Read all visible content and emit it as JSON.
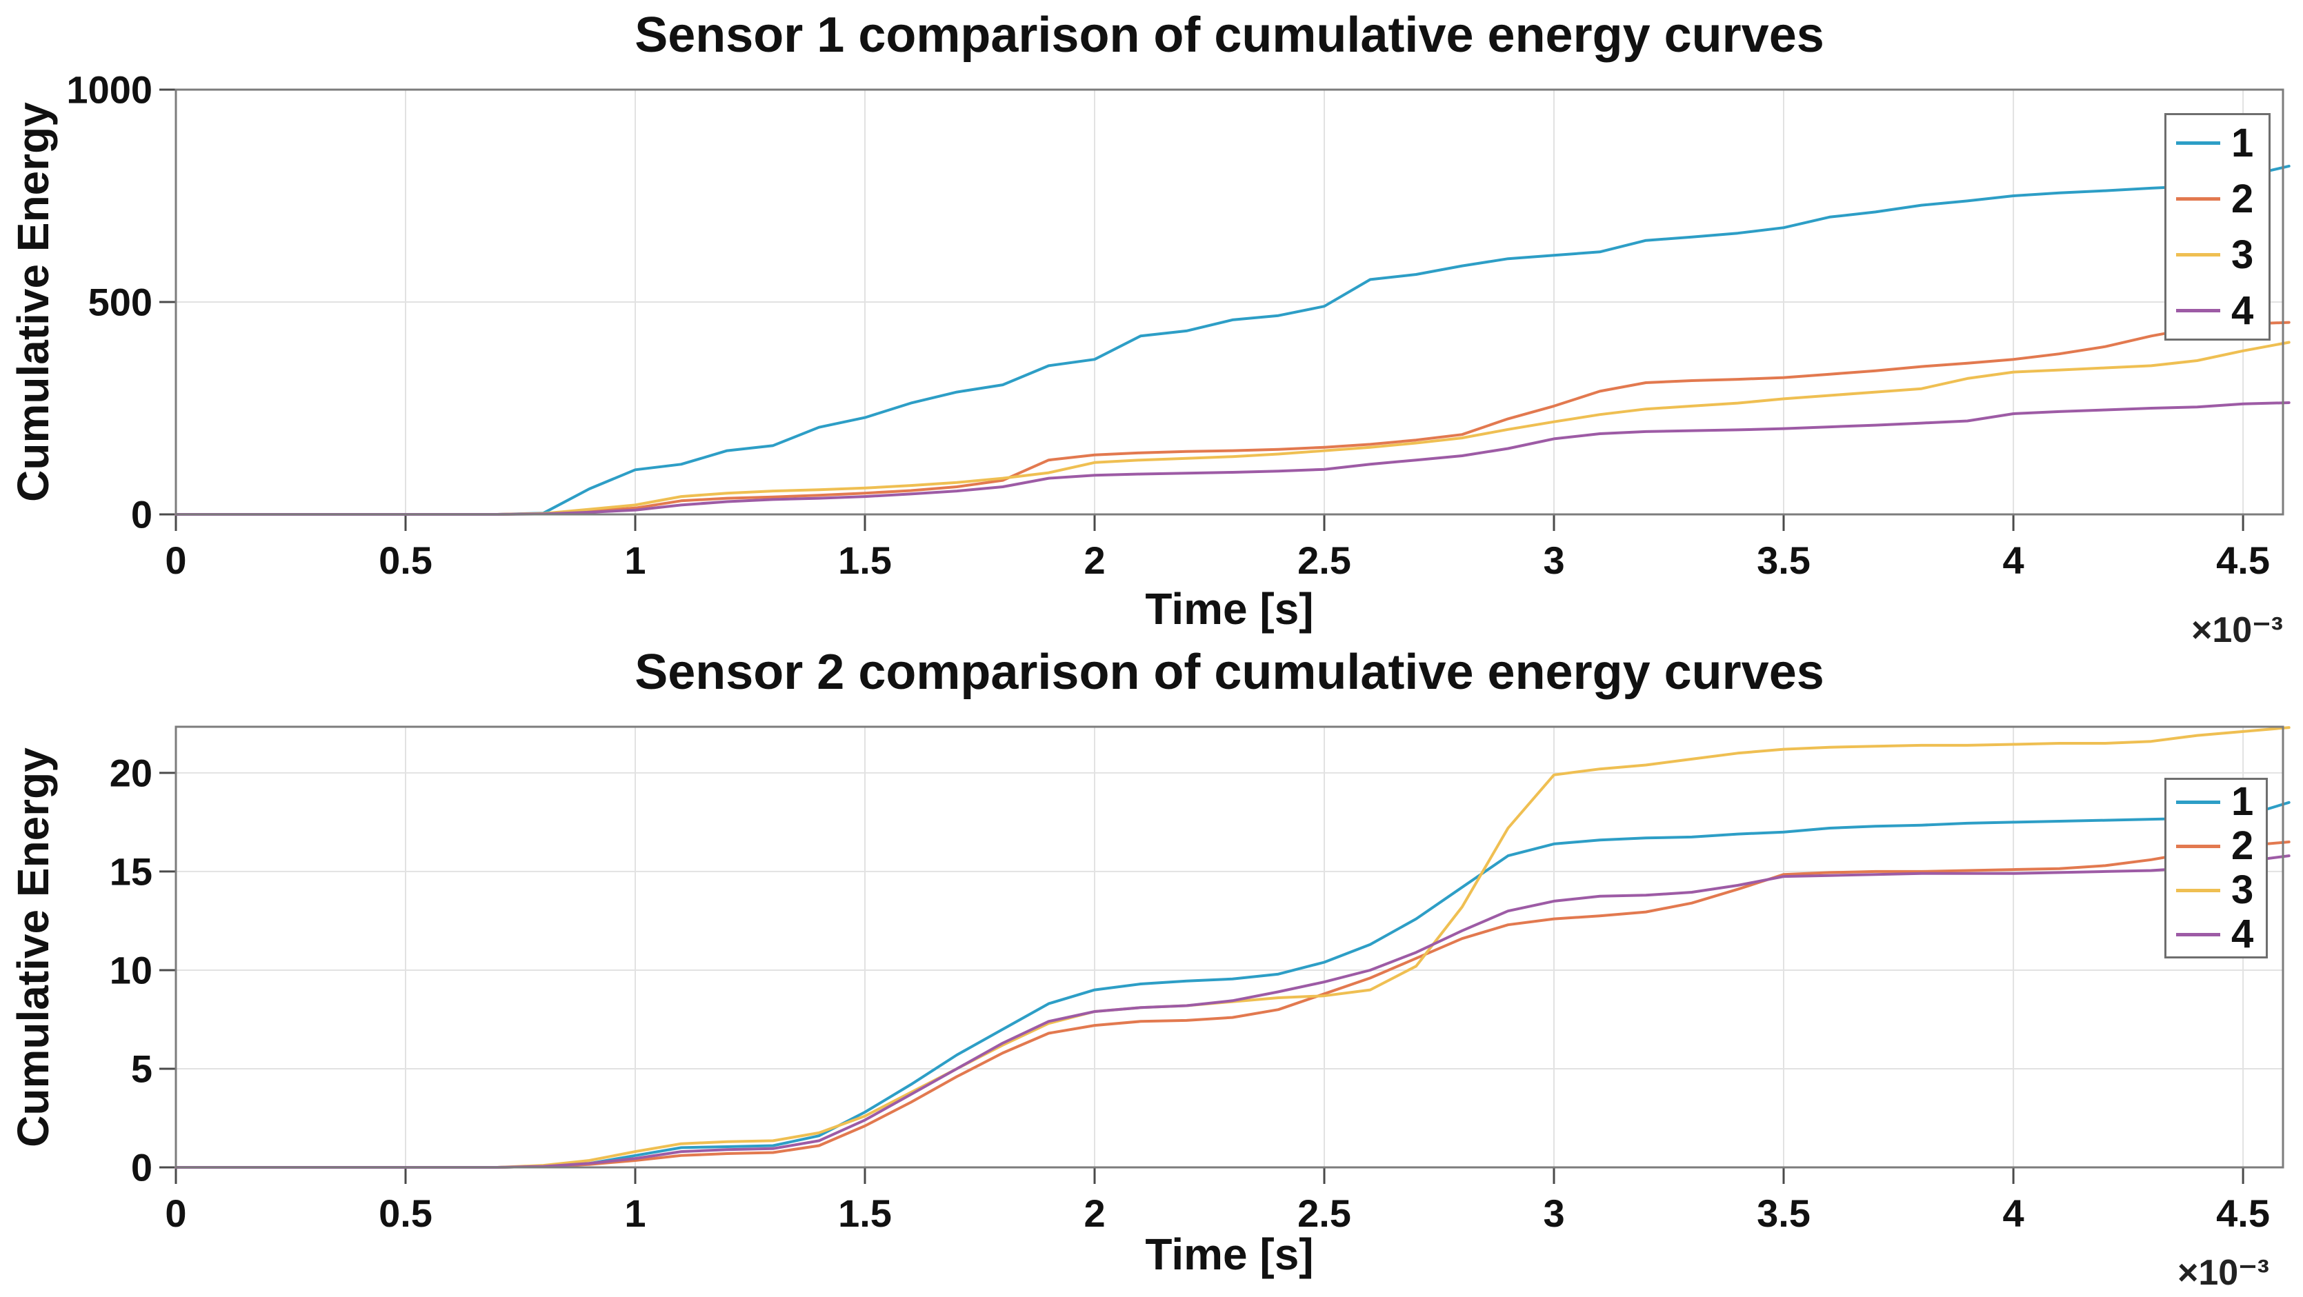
{
  "figure": {
    "background": "#ffffff",
    "grid_color": "#e2e2e2",
    "axes_box_color": "#7c7c7c",
    "text_color": "#111111"
  },
  "chart_data": [
    {
      "type": "line",
      "title": "Sensor 1 comparison of cumulative energy curves",
      "xlabel": "Time [s]",
      "ylabel": "Cumulative Energy",
      "x_multiplier": "×10⁻³",
      "grid": true,
      "legend_position": "northeast",
      "xlim": [
        0,
        4.587
      ],
      "ylim": [
        0,
        1000
      ],
      "x_ticks": [
        0,
        0.5,
        1,
        1.5,
        2,
        2.5,
        3,
        3.5,
        4,
        4.5
      ],
      "x_tick_labels": [
        "0",
        "0.5",
        "1",
        "1.5",
        "2",
        "2.5",
        "3",
        "3.5",
        "4",
        "4.5"
      ],
      "y_ticks": [
        0,
        500,
        1000
      ],
      "y_tick_labels": [
        "0",
        "500",
        "1000"
      ],
      "x": [
        0,
        0.1,
        0.2,
        0.3,
        0.4,
        0.5,
        0.6,
        0.7,
        0.8,
        0.9,
        1.0,
        1.1,
        1.2,
        1.3,
        1.4,
        1.5,
        1.6,
        1.7,
        1.8,
        1.9,
        2.0,
        2.1,
        2.2,
        2.3,
        2.4,
        2.5,
        2.6,
        2.7,
        2.8,
        2.9,
        3.0,
        3.1,
        3.2,
        3.3,
        3.4,
        3.5,
        3.6,
        3.7,
        3.8,
        3.9,
        4.0,
        4.1,
        4.2,
        4.3,
        4.4,
        4.5,
        4.6
      ],
      "series": [
        {
          "name": "1",
          "color": "#2d9ec6",
          "values": [
            0,
            0,
            0,
            0,
            0,
            0,
            0,
            0,
            3,
            60,
            105,
            118,
            150,
            162,
            205,
            228,
            262,
            288,
            305,
            350,
            365,
            420,
            432,
            458,
            468,
            490,
            553,
            565,
            585,
            602,
            610,
            618,
            645,
            653,
            662,
            675,
            700,
            712,
            728,
            738,
            750,
            757,
            762,
            768,
            773,
            795,
            820
          ]
        },
        {
          "name": "2",
          "color": "#e2794f",
          "values": [
            0,
            0,
            0,
            0,
            0,
            0,
            0,
            0,
            2,
            8,
            15,
            32,
            38,
            41,
            45,
            50,
            56,
            65,
            80,
            128,
            140,
            145,
            148,
            150,
            153,
            158,
            165,
            175,
            188,
            225,
            255,
            290,
            310,
            315,
            318,
            322,
            330,
            338,
            348,
            356,
            365,
            378,
            395,
            420,
            440,
            448,
            452
          ]
        },
        {
          "name": "3",
          "color": "#efbf52",
          "values": [
            0,
            0,
            0,
            0,
            0,
            0,
            0,
            0,
            2,
            12,
            22,
            42,
            50,
            55,
            58,
            62,
            68,
            75,
            85,
            98,
            122,
            128,
            132,
            136,
            142,
            150,
            158,
            168,
            180,
            200,
            218,
            235,
            248,
            255,
            262,
            272,
            280,
            288,
            296,
            320,
            335,
            340,
            345,
            350,
            362,
            385,
            405
          ]
        },
        {
          "name": "4",
          "color": "#9d5ba5",
          "values": [
            0,
            0,
            0,
            0,
            0,
            0,
            0,
            0,
            1,
            5,
            10,
            22,
            30,
            35,
            38,
            42,
            48,
            55,
            65,
            85,
            92,
            95,
            97,
            99,
            102,
            106,
            118,
            128,
            138,
            155,
            178,
            190,
            195,
            197,
            199,
            202,
            206,
            210,
            215,
            220,
            237,
            242,
            246,
            250,
            253,
            260,
            263
          ]
        }
      ]
    },
    {
      "type": "line",
      "title": "Sensor 2 comparison of cumulative energy curves",
      "xlabel": "Time [s]",
      "ylabel": "Cumulative Energy",
      "x_multiplier": "×10⁻³",
      "grid": true,
      "legend_position": "northeast",
      "xlim": [
        0,
        4.587
      ],
      "ylim": [
        0,
        22.34
      ],
      "x_ticks": [
        0,
        0.5,
        1,
        1.5,
        2,
        2.5,
        3,
        3.5,
        4,
        4.5
      ],
      "x_tick_labels": [
        "0",
        "0.5",
        "1",
        "1.5",
        "2",
        "2.5",
        "3",
        "3.5",
        "4",
        "4.5"
      ],
      "y_ticks": [
        0,
        5,
        10,
        15,
        20
      ],
      "y_tick_labels": [
        "0",
        "5",
        "10",
        "15",
        "20"
      ],
      "x": [
        0,
        0.1,
        0.2,
        0.3,
        0.4,
        0.5,
        0.6,
        0.7,
        0.8,
        0.9,
        1.0,
        1.1,
        1.2,
        1.3,
        1.4,
        1.5,
        1.6,
        1.7,
        1.8,
        1.9,
        2.0,
        2.1,
        2.2,
        2.3,
        2.4,
        2.5,
        2.6,
        2.7,
        2.8,
        2.9,
        3.0,
        3.1,
        3.2,
        3.3,
        3.4,
        3.5,
        3.6,
        3.7,
        3.8,
        3.9,
        4.0,
        4.1,
        4.2,
        4.3,
        4.4,
        4.5,
        4.6
      ],
      "series": [
        {
          "name": "1",
          "color": "#2d9ec6",
          "values": [
            0,
            0,
            0,
            0,
            0,
            0,
            0,
            0,
            0.05,
            0.2,
            0.6,
            1.0,
            1.05,
            1.1,
            1.6,
            2.8,
            4.2,
            5.7,
            7.0,
            8.3,
            9.0,
            9.3,
            9.45,
            9.55,
            9.8,
            10.4,
            11.3,
            12.6,
            14.2,
            15.8,
            16.4,
            16.6,
            16.7,
            16.75,
            16.9,
            17.0,
            17.2,
            17.3,
            17.35,
            17.45,
            17.5,
            17.55,
            17.6,
            17.65,
            17.7,
            17.8,
            18.5
          ]
        },
        {
          "name": "2",
          "color": "#e2794f",
          "values": [
            0,
            0,
            0,
            0,
            0,
            0,
            0,
            0,
            0.05,
            0.15,
            0.35,
            0.6,
            0.7,
            0.75,
            1.1,
            2.1,
            3.3,
            4.6,
            5.8,
            6.8,
            7.2,
            7.4,
            7.45,
            7.6,
            8.0,
            8.8,
            9.6,
            10.6,
            11.6,
            12.3,
            12.6,
            12.75,
            12.95,
            13.4,
            14.1,
            14.85,
            14.95,
            15.0,
            15.0,
            15.05,
            15.1,
            15.15,
            15.3,
            15.6,
            16.0,
            16.3,
            16.5
          ]
        },
        {
          "name": "3",
          "color": "#efbf52",
          "values": [
            0,
            0,
            0,
            0,
            0,
            0,
            0,
            0,
            0.1,
            0.35,
            0.8,
            1.2,
            1.3,
            1.35,
            1.75,
            2.6,
            3.8,
            5.0,
            6.2,
            7.3,
            7.9,
            8.1,
            8.2,
            8.4,
            8.6,
            8.7,
            9.0,
            10.2,
            13.2,
            17.2,
            19.9,
            20.2,
            20.4,
            20.7,
            21.0,
            21.2,
            21.3,
            21.35,
            21.4,
            21.4,
            21.45,
            21.5,
            21.5,
            21.6,
            21.9,
            22.1,
            22.3
          ]
        },
        {
          "name": "4",
          "color": "#9d5ba5",
          "values": [
            0,
            0,
            0,
            0,
            0,
            0,
            0,
            0,
            0.05,
            0.2,
            0.45,
            0.8,
            0.9,
            0.95,
            1.35,
            2.4,
            3.7,
            5.0,
            6.3,
            7.4,
            7.9,
            8.1,
            8.2,
            8.45,
            8.9,
            9.4,
            10.0,
            10.9,
            12.0,
            13.0,
            13.5,
            13.75,
            13.8,
            13.95,
            14.3,
            14.75,
            14.8,
            14.85,
            14.9,
            14.9,
            14.9,
            14.95,
            15.0,
            15.05,
            15.2,
            15.5,
            15.8
          ]
        }
      ]
    }
  ]
}
